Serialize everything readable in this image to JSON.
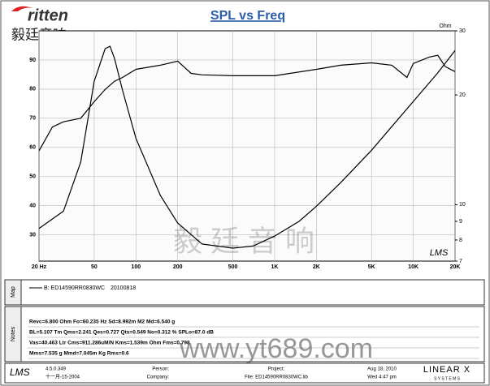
{
  "header": {
    "logo": "ritten",
    "brand": "毅廷音响"
  },
  "chart_data": {
    "type": "line",
    "title": "SPL vs Freq",
    "y2_label": "Ohm",
    "watermark": "LMS",
    "legend_note": "20100818",
    "xlim": [
      20,
      20000
    ],
    "x_log": true,
    "xticks": [
      {
        "value": 20,
        "label": "20 Hz"
      },
      50,
      100,
      200,
      500,
      {
        "value": 1000,
        "label": "1K"
      },
      {
        "value": 2000,
        "label": "2K"
      },
      {
        "value": 5000,
        "label": "5K"
      },
      {
        "value": 10000,
        "label": "10K"
      },
      {
        "value": 20000,
        "label": "20K"
      }
    ],
    "ylim": [
      21,
      100
    ],
    "yticks": [
      30,
      40,
      50,
      60,
      70,
      80,
      90
    ],
    "y2lim": [
      7,
      30
    ],
    "y2_log": true,
    "y2ticks": [
      7,
      8,
      9,
      10,
      20,
      30
    ],
    "grid": true,
    "series": [
      {
        "name": "B: ED14590RR0830WC",
        "color": "#000000",
        "x": [
          20,
          25,
          30,
          40,
          50,
          60,
          70,
          80,
          100,
          150,
          200,
          250,
          300,
          500,
          1000,
          2000,
          3000,
          5000,
          7000,
          9000,
          10000,
          13000,
          15000,
          17000,
          20000
        ],
        "values": [
          58.8,
          67,
          68.8,
          70,
          75.7,
          79.9,
          82.7,
          84,
          86.8,
          88.2,
          89.6,
          85.4,
          84.9,
          84.6,
          84.6,
          86.8,
          88.2,
          89,
          88.2,
          84,
          88.8,
          91,
          91.6,
          87.7,
          86
        ]
      },
      {
        "color": "#000000",
        "axis": "y2",
        "x": [
          20,
          30,
          40,
          50,
          60,
          65,
          70,
          80,
          100,
          150,
          200,
          300,
          500,
          700,
          1000,
          1500,
          2000,
          3000,
          5000,
          10000,
          15000,
          20000
        ],
        "values": [
          8.6,
          9.6,
          13.1,
          21.8,
          26.8,
          27.2,
          25.2,
          20.6,
          15.2,
          10.6,
          8.9,
          7.8,
          7.6,
          7.7,
          8.2,
          9.0,
          9.9,
          11.5,
          14.1,
          19.2,
          23.0,
          26.5
        ]
      }
    ]
  },
  "legend_panel": {
    "label": "Map"
  },
  "notes": {
    "label": "Notes",
    "lines": [
      "Revc=6.800 Ohm  Fo=60.235 Hz  Sd=8.992m M2  Md=6.540 g",
      "BL=5.107 Tm  Qms=2.241  Qes=0.727  Qts=0.549  No=0.312 %  SPLo=87.0 dB",
      "Vas=40.463 Ltr  Cms=911.286uM/N  Kms=1.539m  Ohm  Fms=0.798",
      "Mms=7.535 g  Mmd=7.045m Kg  Rms=0.6"
    ]
  },
  "footer": {
    "software": "LMS",
    "version": "4.5.0.349",
    "build_date": "十一月-15-2004",
    "person": "Person:",
    "company": "Company:",
    "project": "Project:",
    "file": "File: ED14590RR0830WC.lib",
    "date": "Aug 18, 2010",
    "time": "Wed 4:47 pm",
    "brand": "LINEAR X",
    "brand_sub": "S Y S T E M S"
  },
  "overlay": {
    "watermark_cn": "毅 廷 音 响",
    "url": "www.yt689.com"
  }
}
